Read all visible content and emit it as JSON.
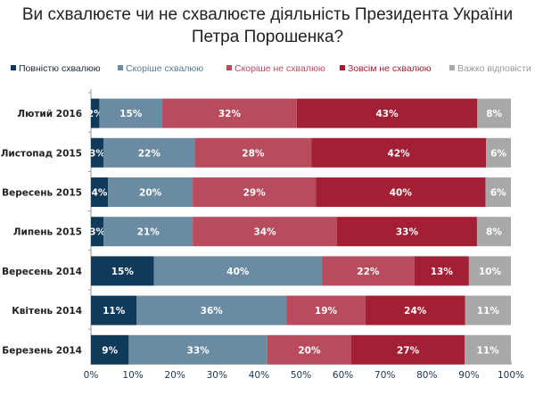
{
  "chart_data": {
    "type": "bar",
    "orientation": "horizontal",
    "stacked": true,
    "title": "Ви схвалюєте чи не схвалюєте діяльність Президента України Петра Порошенка?",
    "categories": [
      "Лютий 2016",
      "Листопад 2015",
      "Вересень 2015",
      "Липень 2015",
      "Вересень 2014",
      "Квітень 2014",
      "Березень 2014"
    ],
    "series": [
      {
        "name": "Повністю схвалюю",
        "color": "#0f3a5a",
        "values": [
          2,
          3,
          4,
          3,
          15,
          11,
          9
        ]
      },
      {
        "name": "Скоріше схвалюю",
        "color": "#6a8ba2",
        "values": [
          15,
          22,
          20,
          21,
          40,
          36,
          33
        ]
      },
      {
        "name": "Скоріше не схвалюю",
        "color": "#b84b5c",
        "values": [
          32,
          28,
          29,
          34,
          22,
          19,
          20
        ]
      },
      {
        "name": "Зовсім не схвалюю",
        "color": "#a31f33",
        "values": [
          43,
          42,
          40,
          33,
          13,
          24,
          27
        ]
      },
      {
        "name": "Важко відповісти",
        "color": "#a8a8a8",
        "values": [
          8,
          6,
          6,
          8,
          10,
          11,
          11
        ]
      }
    ],
    "xlim": [
      0,
      100
    ],
    "x_ticks": [
      "0%",
      "10%",
      "20%",
      "30%",
      "40%",
      "50%",
      "60%",
      "70%",
      "80%",
      "90%",
      "100%"
    ],
    "legend_position": "top",
    "grid": false
  }
}
